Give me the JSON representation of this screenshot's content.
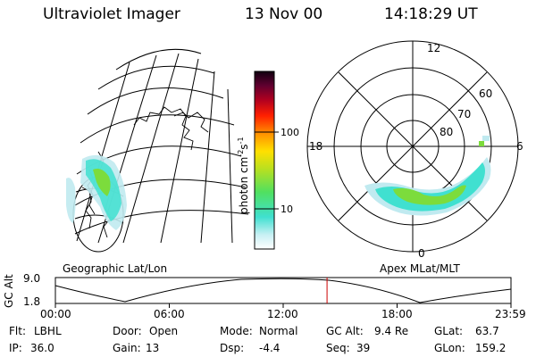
{
  "header": {
    "instrument": "Ultraviolet Imager",
    "date": "13 Nov 00",
    "time": "14:18:29 UT"
  },
  "colorbar": {
    "unit_label": "photon cm",
    "unit_exp1": "-2",
    "unit_s": "s",
    "unit_exp2": "-1",
    "tick_100": "100",
    "tick_10": "10"
  },
  "geo_panel": {
    "label": "Geographic Lat/Lon"
  },
  "polar_panel": {
    "label": "Apex MLat/MLT",
    "mlt_top": "12",
    "mlt_left": "18",
    "mlt_right": "6",
    "mlt_bottom": "0",
    "lat_60": "60",
    "lat_70": "70",
    "lat_80": "80"
  },
  "altitude_plot": {
    "y_label": "GC Alt",
    "y_max": "9.0",
    "y_min": "1.8",
    "x_ticks": [
      "00:00",
      "06:00",
      "12:00",
      "18:00",
      "23:59"
    ],
    "current_time_hours": 14.31
  },
  "footer": {
    "flt_label": "Flt:",
    "flt_value": "LBHL",
    "door_label": "Door:",
    "door_value": "Open",
    "mode_label": "Mode:",
    "mode_value": "Normal",
    "gcalt_label": "GC Alt:",
    "gcalt_value": "9.4 Re",
    "glat_label": "GLat:",
    "glat_value": "63.7",
    "ip_label": "IP:",
    "ip_value": "36.0",
    "gain_label": "Gain:",
    "gain_value": "13",
    "dsp_label": "Dsp:",
    "dsp_value": "-4.4",
    "seq_label": "Seq:",
    "seq_value": "39",
    "glon_label": "GLon:",
    "glon_value": "159.2"
  },
  "colors": {
    "line": "#000000",
    "cursor": "#cc0000",
    "aurora_light": "#bfeaf0",
    "aurora_cyan": "#40e0d0",
    "aurora_green": "#7cdc3c"
  }
}
